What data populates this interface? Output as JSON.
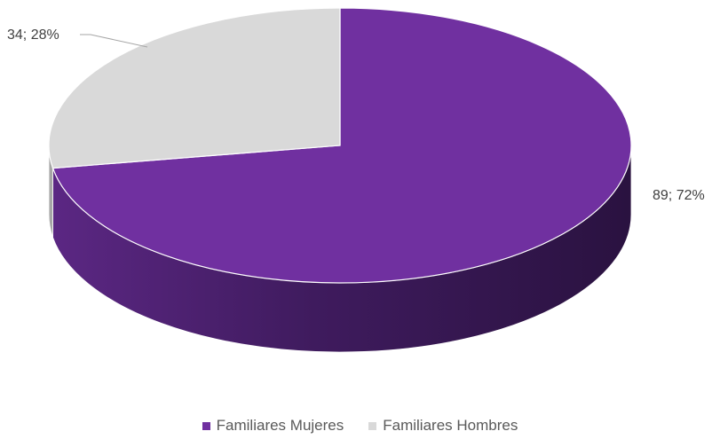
{
  "chart_data": {
    "type": "pie",
    "style": "3d",
    "categories": [
      "Familiares Mujeres",
      "Familiares Hombres"
    ],
    "values": [
      89,
      34
    ],
    "percentages": [
      72,
      28
    ],
    "data_labels": [
      "89; 72%",
      "34; 28%"
    ],
    "colors": [
      "#7030A0",
      "#D9D9D9"
    ],
    "legend_position": "bottom"
  }
}
